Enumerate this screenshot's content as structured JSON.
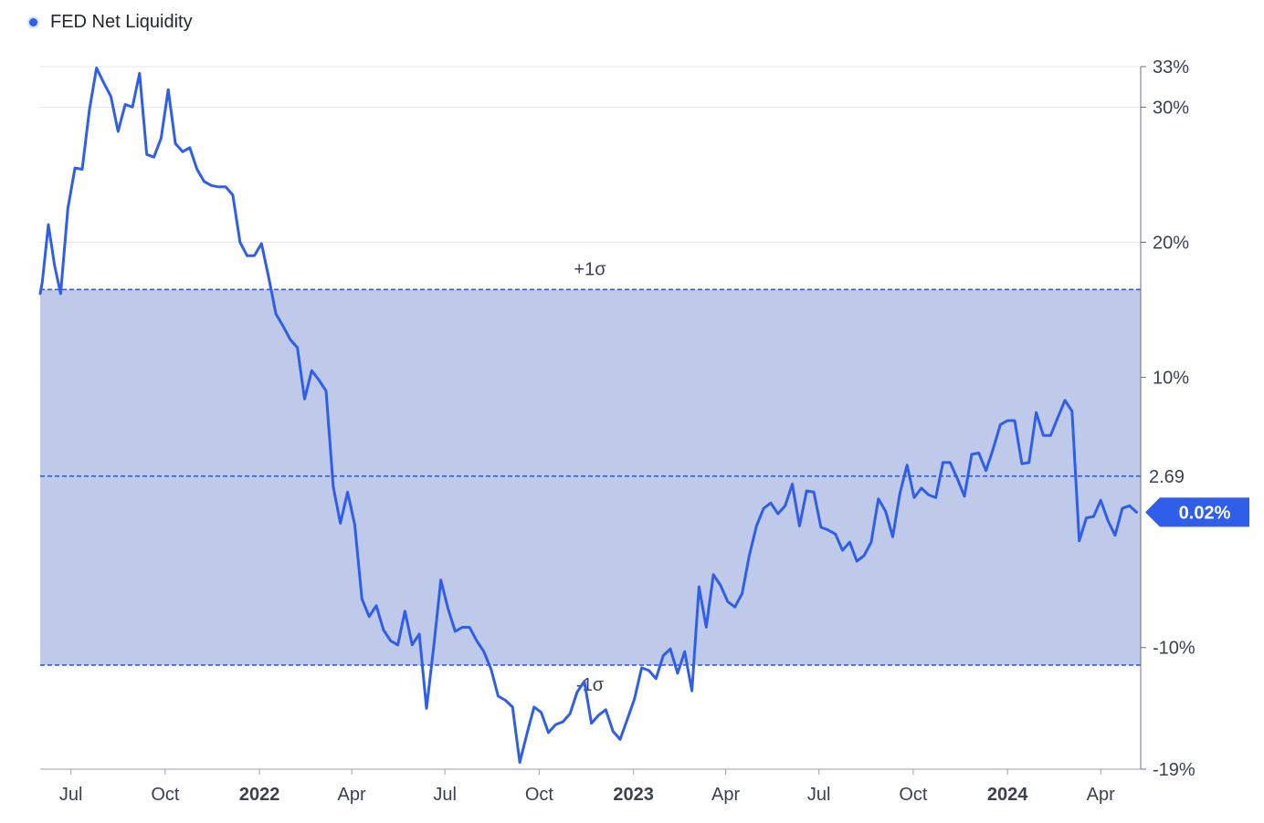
{
  "legend": {
    "label": "FED Net Liquidity"
  },
  "colors": {
    "line": "#2f5ee8",
    "band_fill": "#bcc6e8",
    "grid": "#e3e5ea",
    "axis_text": "#3c4150",
    "badge_bg": "#2f5ee8",
    "badge_text": "#ffffff"
  },
  "chart_data": {
    "type": "line",
    "title": "",
    "xlabel": "",
    "ylabel": "",
    "unit": "%",
    "ylim": [
      -19,
      33
    ],
    "y_ticks": [
      {
        "value": 33,
        "label": "33%"
      },
      {
        "value": 30,
        "label": "30%"
      },
      {
        "value": 20,
        "label": "20%"
      },
      {
        "value": 10,
        "label": "10%"
      },
      {
        "value": -10,
        "label": "-10%"
      },
      {
        "value": -19,
        "label": "-19%"
      }
    ],
    "x_ticks": [
      {
        "value": "2021-07",
        "label": "Jul",
        "bold": false
      },
      {
        "value": "2021-10",
        "label": "Oct",
        "bold": false
      },
      {
        "value": "2022-01",
        "label": "2022",
        "bold": true
      },
      {
        "value": "2022-04",
        "label": "Apr",
        "bold": false
      },
      {
        "value": "2022-07",
        "label": "Jul",
        "bold": false
      },
      {
        "value": "2022-10",
        "label": "Oct",
        "bold": false
      },
      {
        "value": "2023-01",
        "label": "2023",
        "bold": true
      },
      {
        "value": "2023-04",
        "label": "Apr",
        "bold": false
      },
      {
        "value": "2023-07",
        "label": "Jul",
        "bold": false
      },
      {
        "value": "2023-10",
        "label": "Oct",
        "bold": false
      },
      {
        "value": "2024-01",
        "label": "2024",
        "bold": true
      },
      {
        "value": "2024-04",
        "label": "Apr",
        "bold": false
      }
    ],
    "x_range": [
      "2021-06-01",
      "2024-05-10"
    ],
    "grid": true,
    "reference_lines": [
      {
        "label": "+1σ",
        "value": 16.5
      },
      {
        "label": "2.69",
        "value": 2.69
      },
      {
        "label": "-1σ",
        "value": -11.3
      }
    ],
    "band": {
      "from": -11.3,
      "to": 16.5
    },
    "current_value": {
      "value": 0.02,
      "label": "0.02%"
    },
    "series": [
      {
        "name": "FED Net Liquidity",
        "points": [
          [
            "2021-06-01",
            16.2
          ],
          [
            "2021-06-03",
            17.0
          ],
          [
            "2021-06-09",
            21.3
          ],
          [
            "2021-06-15",
            18.3
          ],
          [
            "2021-06-21",
            16.2
          ],
          [
            "2021-06-28",
            22.5
          ],
          [
            "2021-07-05",
            25.5
          ],
          [
            "2021-07-12",
            25.4
          ],
          [
            "2021-07-19",
            29.8
          ],
          [
            "2021-07-26",
            32.9
          ],
          [
            "2021-08-02",
            31.8
          ],
          [
            "2021-08-09",
            30.8
          ],
          [
            "2021-08-16",
            28.2
          ],
          [
            "2021-08-23",
            30.2
          ],
          [
            "2021-08-30",
            30.0
          ],
          [
            "2021-09-06",
            32.5
          ],
          [
            "2021-09-13",
            26.5
          ],
          [
            "2021-09-20",
            26.3
          ],
          [
            "2021-09-27",
            27.7
          ],
          [
            "2021-10-04",
            31.3
          ],
          [
            "2021-10-11",
            27.3
          ],
          [
            "2021-10-18",
            26.7
          ],
          [
            "2021-10-25",
            27.0
          ],
          [
            "2021-11-01",
            25.4
          ],
          [
            "2021-11-08",
            24.5
          ],
          [
            "2021-11-15",
            24.2
          ],
          [
            "2021-11-22",
            24.1
          ],
          [
            "2021-11-29",
            24.1
          ],
          [
            "2021-12-06",
            23.5
          ],
          [
            "2021-12-13",
            20.0
          ],
          [
            "2021-12-20",
            19.0
          ],
          [
            "2021-12-27",
            19.0
          ],
          [
            "2022-01-03",
            19.9
          ],
          [
            "2022-01-10",
            17.4
          ],
          [
            "2022-01-17",
            14.7
          ],
          [
            "2022-01-24",
            13.8
          ],
          [
            "2022-01-31",
            12.8
          ],
          [
            "2022-02-07",
            12.2
          ],
          [
            "2022-02-14",
            8.4
          ],
          [
            "2022-02-21",
            10.5
          ],
          [
            "2022-02-28",
            9.8
          ],
          [
            "2022-03-07",
            9.0
          ],
          [
            "2022-03-14",
            1.9
          ],
          [
            "2022-03-21",
            -0.8
          ],
          [
            "2022-03-28",
            1.5
          ],
          [
            "2022-04-04",
            -0.9
          ],
          [
            "2022-04-11",
            -6.4
          ],
          [
            "2022-04-18",
            -7.7
          ],
          [
            "2022-04-25",
            -6.9
          ],
          [
            "2022-05-02",
            -8.7
          ],
          [
            "2022-05-09",
            -9.5
          ],
          [
            "2022-05-16",
            -9.8
          ],
          [
            "2022-05-23",
            -7.3
          ],
          [
            "2022-05-30",
            -9.8
          ],
          [
            "2022-06-06",
            -9.0
          ],
          [
            "2022-06-13",
            -14.5
          ],
          [
            "2022-06-20",
            -10.0
          ],
          [
            "2022-06-27",
            -5.0
          ],
          [
            "2022-07-04",
            -7.1
          ],
          [
            "2022-07-11",
            -8.8
          ],
          [
            "2022-07-18",
            -8.5
          ],
          [
            "2022-07-25",
            -8.5
          ],
          [
            "2022-08-01",
            -9.5
          ],
          [
            "2022-08-08",
            -10.3
          ],
          [
            "2022-08-15",
            -11.6
          ],
          [
            "2022-08-22",
            -13.6
          ],
          [
            "2022-08-29",
            -13.9
          ],
          [
            "2022-09-05",
            -14.4
          ],
          [
            "2022-09-12",
            -18.5
          ],
          [
            "2022-09-19",
            -16.4
          ],
          [
            "2022-09-26",
            -14.4
          ],
          [
            "2022-10-03",
            -14.8
          ],
          [
            "2022-10-10",
            -16.3
          ],
          [
            "2022-10-17",
            -15.7
          ],
          [
            "2022-10-24",
            -15.5
          ],
          [
            "2022-10-31",
            -14.9
          ],
          [
            "2022-11-07",
            -13.3
          ],
          [
            "2022-11-14",
            -12.5
          ],
          [
            "2022-11-21",
            -15.6
          ],
          [
            "2022-11-28",
            -15.0
          ],
          [
            "2022-12-05",
            -14.6
          ],
          [
            "2022-12-12",
            -16.2
          ],
          [
            "2022-12-19",
            -16.8
          ],
          [
            "2022-12-26",
            -15.3
          ],
          [
            "2023-01-02",
            -13.8
          ],
          [
            "2023-01-09",
            -11.5
          ],
          [
            "2023-01-16",
            -11.7
          ],
          [
            "2023-01-23",
            -12.3
          ],
          [
            "2023-01-30",
            -10.6
          ],
          [
            "2023-02-06",
            -10.1
          ],
          [
            "2023-02-13",
            -11.9
          ],
          [
            "2023-02-20",
            -10.3
          ],
          [
            "2023-02-27",
            -13.2
          ],
          [
            "2023-03-06",
            -5.5
          ],
          [
            "2023-03-13",
            -8.5
          ],
          [
            "2023-03-20",
            -4.6
          ],
          [
            "2023-03-27",
            -5.4
          ],
          [
            "2023-04-03",
            -6.6
          ],
          [
            "2023-04-10",
            -7.0
          ],
          [
            "2023-04-17",
            -6.0
          ],
          [
            "2023-04-24",
            -3.2
          ],
          [
            "2023-05-01",
            -1.0
          ],
          [
            "2023-05-08",
            0.3
          ],
          [
            "2023-05-15",
            0.7
          ],
          [
            "2023-05-22",
            -0.1
          ],
          [
            "2023-05-29",
            0.5
          ],
          [
            "2023-06-05",
            2.1
          ],
          [
            "2023-06-12",
            -1.0
          ],
          [
            "2023-06-19",
            1.6
          ],
          [
            "2023-06-26",
            1.5
          ],
          [
            "2023-07-03",
            -1.1
          ],
          [
            "2023-07-10",
            -1.3
          ],
          [
            "2023-07-17",
            -1.6
          ],
          [
            "2023-07-24",
            -2.8
          ],
          [
            "2023-07-31",
            -2.2
          ],
          [
            "2023-08-07",
            -3.6
          ],
          [
            "2023-08-14",
            -3.2
          ],
          [
            "2023-08-21",
            -2.2
          ],
          [
            "2023-08-28",
            1.0
          ],
          [
            "2023-09-04",
            0.1
          ],
          [
            "2023-09-11",
            -1.8
          ],
          [
            "2023-09-18",
            1.4
          ],
          [
            "2023-09-25",
            3.5
          ],
          [
            "2023-10-02",
            1.1
          ],
          [
            "2023-10-09",
            1.8
          ],
          [
            "2023-10-16",
            1.3
          ],
          [
            "2023-10-23",
            1.1
          ],
          [
            "2023-10-30",
            3.7
          ],
          [
            "2023-11-06",
            3.7
          ],
          [
            "2023-11-13",
            2.5
          ],
          [
            "2023-11-20",
            1.2
          ],
          [
            "2023-11-27",
            4.3
          ],
          [
            "2023-12-04",
            4.4
          ],
          [
            "2023-12-11",
            3.1
          ],
          [
            "2023-12-18",
            4.7
          ],
          [
            "2023-12-25",
            6.5
          ],
          [
            "2024-01-01",
            6.8
          ],
          [
            "2024-01-08",
            6.8
          ],
          [
            "2024-01-15",
            3.6
          ],
          [
            "2024-01-22",
            3.7
          ],
          [
            "2024-01-29",
            7.4
          ],
          [
            "2024-02-05",
            5.7
          ],
          [
            "2024-02-12",
            5.7
          ],
          [
            "2024-02-19",
            7.0
          ],
          [
            "2024-02-26",
            8.3
          ],
          [
            "2024-03-04",
            7.5
          ],
          [
            "2024-03-11",
            -2.1
          ],
          [
            "2024-03-18",
            -0.4
          ],
          [
            "2024-03-25",
            -0.3
          ],
          [
            "2024-04-01",
            0.9
          ],
          [
            "2024-04-08",
            -0.6
          ],
          [
            "2024-04-15",
            -1.7
          ],
          [
            "2024-04-22",
            0.3
          ],
          [
            "2024-04-29",
            0.5
          ],
          [
            "2024-05-06",
            0.02
          ]
        ]
      }
    ]
  }
}
